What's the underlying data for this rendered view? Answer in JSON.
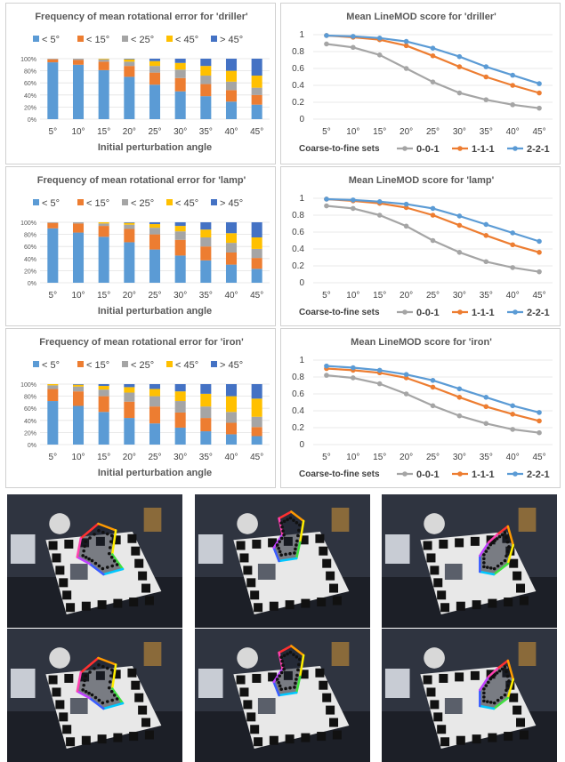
{
  "colors": {
    "lt5": "#5b9bd5",
    "lt15": "#ed7d31",
    "lt25": "#a5a5a5",
    "lt45": "#ffc000",
    "gt45": "#4472c4",
    "s001": "#a5a5a5",
    "s111": "#ed7d31",
    "s221": "#5b9bd5"
  },
  "chart_data": [
    {
      "type": "bar",
      "stacked": true,
      "title": "Frequency of mean rotational error for 'driller'",
      "xlabel": "Initial perturbation angle",
      "ylabel": "",
      "ylim": [
        0,
        100
      ],
      "y_ticks": [
        "0%",
        "20%",
        "40%",
        "60%",
        "80%",
        "100%"
      ],
      "legend_position": "top",
      "categories": [
        "5°",
        "10°",
        "15°",
        "20°",
        "25°",
        "30°",
        "35°",
        "40°",
        "45°"
      ],
      "series": [
        {
          "name": "< 5°",
          "color_key": "lt5",
          "values": [
            94,
            90,
            81,
            70,
            57,
            46,
            38,
            29,
            24
          ]
        },
        {
          "name": "< 15°",
          "color_key": "lt15",
          "values": [
            5,
            8,
            14,
            18,
            20,
            22,
            20,
            19,
            16
          ]
        },
        {
          "name": "< 25°",
          "color_key": "lt25",
          "values": [
            1,
            2,
            4,
            7,
            11,
            14,
            14,
            14,
            12
          ]
        },
        {
          "name": "< 45°",
          "color_key": "lt45",
          "values": [
            0,
            0,
            1,
            4,
            8,
            11,
            16,
            18,
            20
          ]
        },
        {
          "name": "> 45°",
          "color_key": "gt45",
          "values": [
            0,
            0,
            0,
            1,
            4,
            7,
            12,
            20,
            28
          ]
        }
      ]
    },
    {
      "type": "line",
      "title": "Mean LineMOD score for 'driller'",
      "xlabel": "",
      "legend_title": "Coarse-to-fine sets",
      "legend_position": "bottom",
      "ylim": [
        0,
        1
      ],
      "y_ticks": [
        "0",
        "0.2",
        "0.4",
        "0.6",
        "0.8",
        "1"
      ],
      "categories": [
        "5°",
        "10°",
        "15°",
        "20°",
        "25°",
        "30°",
        "35°",
        "40°",
        "45°"
      ],
      "series": [
        {
          "name": "0-0-1",
          "color_key": "s001",
          "values": [
            0.89,
            0.85,
            0.76,
            0.6,
            0.44,
            0.31,
            0.23,
            0.17,
            0.13
          ]
        },
        {
          "name": "1-1-1",
          "color_key": "s111",
          "values": [
            0.99,
            0.97,
            0.94,
            0.87,
            0.75,
            0.62,
            0.5,
            0.4,
            0.31
          ]
        },
        {
          "name": "2-2-1",
          "color_key": "s221",
          "values": [
            0.99,
            0.98,
            0.96,
            0.92,
            0.84,
            0.74,
            0.62,
            0.52,
            0.42
          ]
        }
      ]
    },
    {
      "type": "bar",
      "stacked": true,
      "title": "Frequency of mean rotational error for 'lamp'",
      "xlabel": "Initial perturbation angle",
      "ylabel": "",
      "ylim": [
        0,
        100
      ],
      "y_ticks": [
        "0%",
        "20%",
        "40%",
        "60%",
        "80%",
        "100%"
      ],
      "legend_position": "top",
      "categories": [
        "5°",
        "10°",
        "15°",
        "20°",
        "25°",
        "30°",
        "35°",
        "40°",
        "45°"
      ],
      "series": [
        {
          "name": "< 5°",
          "color_key": "lt5",
          "values": [
            90,
            83,
            76,
            67,
            55,
            45,
            37,
            30,
            23
          ]
        },
        {
          "name": "< 15°",
          "color_key": "lt15",
          "values": [
            9,
            15,
            18,
            22,
            25,
            26,
            23,
            20,
            18
          ]
        },
        {
          "name": "< 25°",
          "color_key": "lt25",
          "values": [
            1,
            2,
            4,
            7,
            11,
            14,
            15,
            16,
            15
          ]
        },
        {
          "name": "< 45°",
          "color_key": "lt45",
          "values": [
            0,
            0,
            2,
            3,
            6,
            9,
            13,
            16,
            19
          ]
        },
        {
          "name": "> 45°",
          "color_key": "gt45",
          "values": [
            0,
            0,
            0,
            1,
            3,
            6,
            12,
            18,
            25
          ]
        }
      ]
    },
    {
      "type": "line",
      "title": "Mean LineMOD score for 'lamp'",
      "xlabel": "",
      "legend_title": "Coarse-to-fine sets",
      "legend_position": "bottom",
      "ylim": [
        0,
        1
      ],
      "y_ticks": [
        "0",
        "0.2",
        "0.4",
        "0.6",
        "0.8",
        "1"
      ],
      "categories": [
        "5°",
        "10°",
        "15°",
        "20°",
        "25°",
        "30°",
        "35°",
        "40°",
        "45°"
      ],
      "series": [
        {
          "name": "0-0-1",
          "color_key": "s001",
          "values": [
            0.91,
            0.88,
            0.8,
            0.67,
            0.5,
            0.36,
            0.25,
            0.18,
            0.13
          ]
        },
        {
          "name": "1-1-1",
          "color_key": "s111",
          "values": [
            0.99,
            0.97,
            0.94,
            0.89,
            0.8,
            0.68,
            0.56,
            0.45,
            0.36
          ]
        },
        {
          "name": "2-2-1",
          "color_key": "s221",
          "values": [
            0.99,
            0.98,
            0.96,
            0.93,
            0.88,
            0.79,
            0.69,
            0.59,
            0.49
          ]
        }
      ]
    },
    {
      "type": "bar",
      "stacked": true,
      "title": "Frequency of mean rotational error for 'iron'",
      "xlabel": "Initial perturbation angle",
      "ylabel": "",
      "ylim": [
        0,
        100
      ],
      "y_ticks": [
        "0%",
        "20%",
        "40%",
        "60%",
        "80%",
        "100%"
      ],
      "legend_position": "top",
      "categories": [
        "5°",
        "10°",
        "15°",
        "20°",
        "25°",
        "30°",
        "35°",
        "40°",
        "45°"
      ],
      "series": [
        {
          "name": "< 5°",
          "color_key": "lt5",
          "values": [
            72,
            64,
            54,
            44,
            35,
            28,
            22,
            17,
            14
          ]
        },
        {
          "name": "< 15°",
          "color_key": "lt15",
          "values": [
            20,
            24,
            26,
            27,
            28,
            25,
            22,
            19,
            15
          ]
        },
        {
          "name": "< 25°",
          "color_key": "lt25",
          "values": [
            6,
            8,
            11,
            15,
            17,
            19,
            19,
            18,
            17
          ]
        },
        {
          "name": "< 45°",
          "color_key": "lt45",
          "values": [
            2,
            3,
            6,
            9,
            12,
            16,
            21,
            26,
            30
          ]
        },
        {
          "name": "> 45°",
          "color_key": "gt45",
          "values": [
            0,
            1,
            3,
            5,
            8,
            12,
            16,
            20,
            24
          ]
        }
      ]
    },
    {
      "type": "line",
      "title": "Mean LineMOD score for 'iron'",
      "xlabel": "",
      "legend_title": "Coarse-to-fine sets",
      "legend_position": "bottom",
      "ylim": [
        0,
        1
      ],
      "y_ticks": [
        "0",
        "0.2",
        "0.4",
        "0.6",
        "0.8",
        "1"
      ],
      "categories": [
        "5°",
        "10°",
        "15°",
        "20°",
        "25°",
        "30°",
        "35°",
        "40°",
        "45°"
      ],
      "series": [
        {
          "name": "0-0-1",
          "color_key": "s001",
          "values": [
            0.82,
            0.79,
            0.72,
            0.6,
            0.46,
            0.34,
            0.25,
            0.18,
            0.14
          ]
        },
        {
          "name": "1-1-1",
          "color_key": "s111",
          "values": [
            0.9,
            0.88,
            0.85,
            0.79,
            0.68,
            0.56,
            0.45,
            0.36,
            0.28
          ]
        },
        {
          "name": "2-2-1",
          "color_key": "s221",
          "values": [
            0.93,
            0.91,
            0.88,
            0.83,
            0.76,
            0.66,
            0.56,
            0.46,
            0.38
          ]
        }
      ]
    }
  ],
  "photos": [
    {
      "object": "driller",
      "row": 1,
      "scene": "tabletop-with-marker-board",
      "contour": "colored-outline-with-black-dots"
    },
    {
      "object": "lamp",
      "row": 1,
      "scene": "tabletop-with-marker-board",
      "contour": "colored-outline-with-black-dots"
    },
    {
      "object": "iron",
      "row": 1,
      "scene": "tabletop-with-marker-board",
      "contour": "colored-outline-with-black-dots"
    },
    {
      "object": "driller",
      "row": 2,
      "scene": "tabletop-with-marker-board",
      "contour": "colored-outline-with-black-dots"
    },
    {
      "object": "lamp",
      "row": 2,
      "scene": "tabletop-with-marker-board",
      "contour": "colored-outline-with-black-dots"
    },
    {
      "object": "iron",
      "row": 2,
      "scene": "tabletop-with-marker-board",
      "contour": "colored-outline-with-black-dots"
    }
  ]
}
